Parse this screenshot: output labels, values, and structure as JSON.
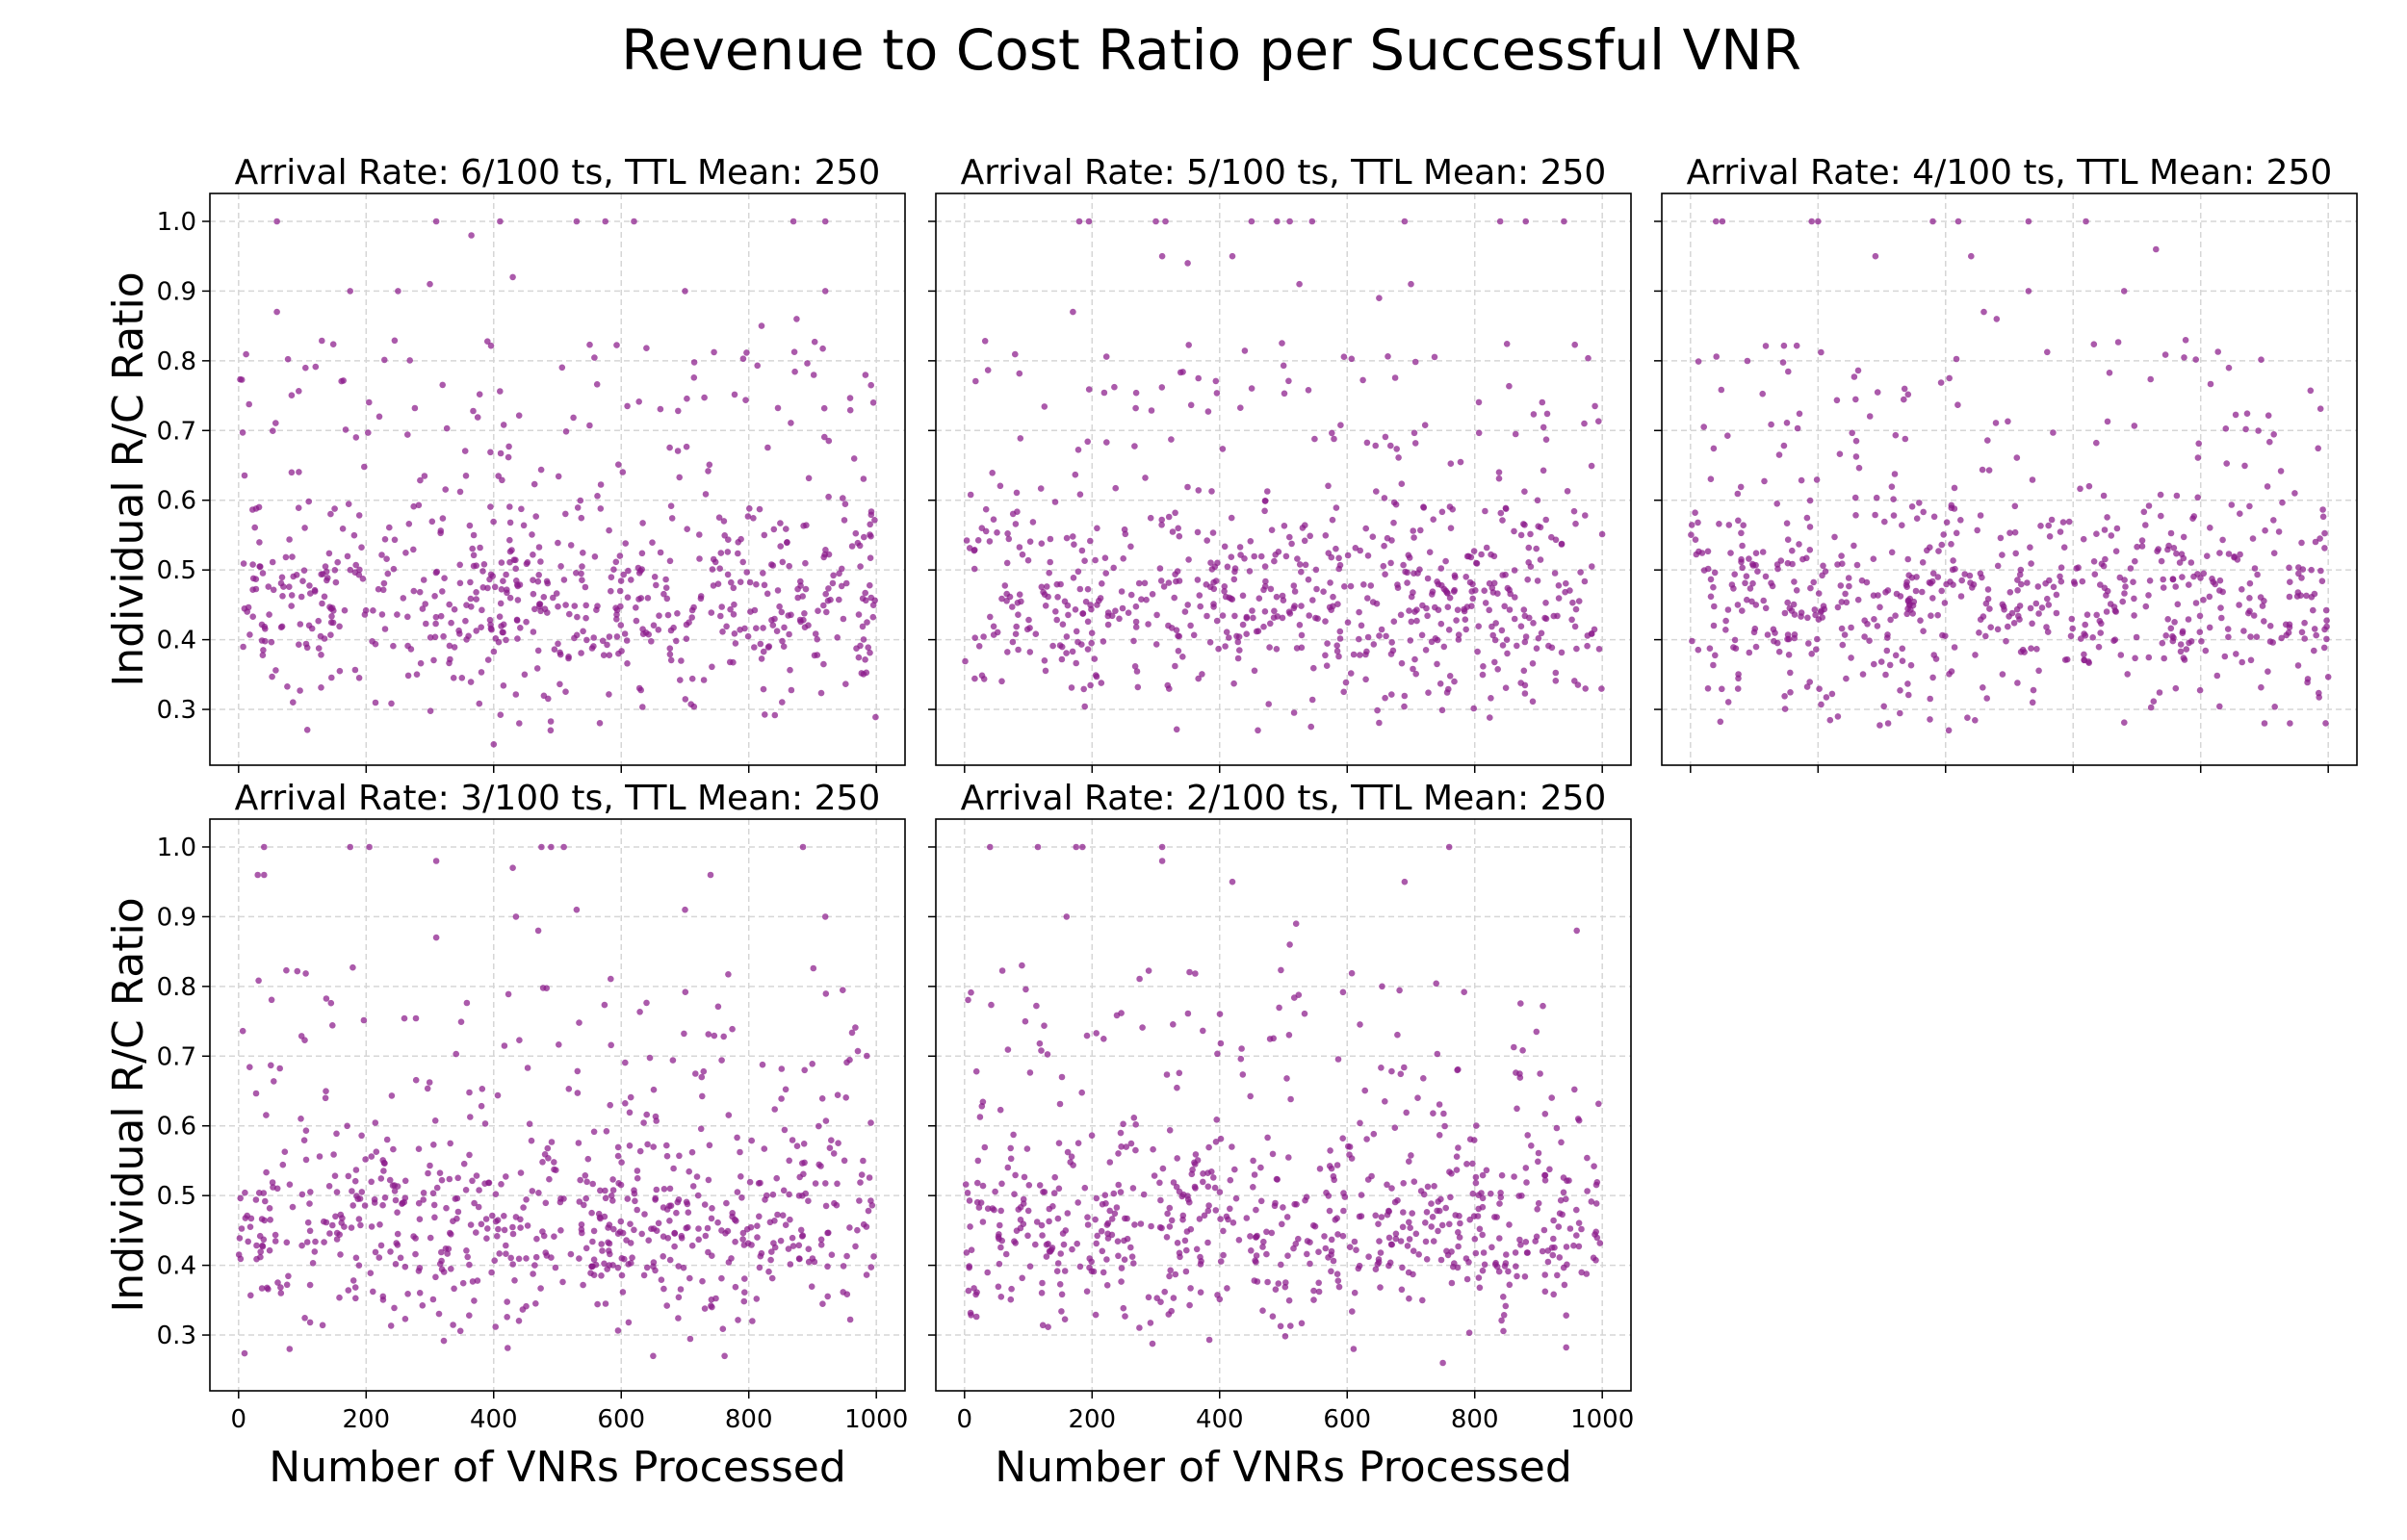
{
  "figure": {
    "title": "Revenue to Cost Ratio per Successful VNR",
    "marker_color": "#8b1a8b",
    "gridlines": true,
    "shared_y_axis": true,
    "shared_x_axis": true
  },
  "chart_data": [
    {
      "type": "scatter",
      "title": "Arrival Rate: 6/100 ts, TTL Mean: 250",
      "xlabel": "",
      "ylabel": "Individual R/C Ratio",
      "xlim": [
        -45,
        1045
      ],
      "ylim": [
        0.22,
        1.04
      ],
      "x_ticks": [
        0,
        200,
        400,
        600,
        800,
        1000
      ],
      "y_ticks": [
        0.3,
        0.4,
        0.5,
        0.6,
        0.7,
        0.8,
        0.9,
        1.0
      ],
      "n_points": 700,
      "approx_outliers": [
        {
          "x": 60,
          "y": 1.0
        },
        {
          "x": 310,
          "y": 1.0
        },
        {
          "x": 410,
          "y": 1.0
        },
        {
          "x": 530,
          "y": 1.0
        },
        {
          "x": 575,
          "y": 1.0
        },
        {
          "x": 620,
          "y": 1.0
        },
        {
          "x": 870,
          "y": 1.0
        },
        {
          "x": 920,
          "y": 1.0
        },
        {
          "x": 365,
          "y": 0.98
        },
        {
          "x": 430,
          "y": 0.92
        },
        {
          "x": 300,
          "y": 0.91
        },
        {
          "x": 700,
          "y": 0.9
        },
        {
          "x": 920,
          "y": 0.9
        },
        {
          "x": 175,
          "y": 0.9
        },
        {
          "x": 250,
          "y": 0.9
        },
        {
          "x": 60,
          "y": 0.87
        },
        {
          "x": 875,
          "y": 0.86
        },
        {
          "x": 820,
          "y": 0.85
        },
        {
          "x": 440,
          "y": 0.28
        },
        {
          "x": 400,
          "y": 0.25
        }
      ]
    },
    {
      "type": "scatter",
      "title": "Arrival Rate: 5/100 ts, TTL Mean: 250",
      "xlabel": "",
      "ylabel": "",
      "xlim": [
        -45,
        1045
      ],
      "ylim": [
        0.22,
        1.04
      ],
      "x_ticks": [
        0,
        200,
        400,
        600,
        800,
        1000
      ],
      "y_ticks": [
        0.3,
        0.4,
        0.5,
        0.6,
        0.7,
        0.8,
        0.9,
        1.0
      ],
      "n_points": 700,
      "approx_outliers": [
        {
          "x": 180,
          "y": 1.0
        },
        {
          "x": 195,
          "y": 1.0
        },
        {
          "x": 300,
          "y": 1.0
        },
        {
          "x": 315,
          "y": 1.0
        },
        {
          "x": 450,
          "y": 1.0
        },
        {
          "x": 490,
          "y": 1.0
        },
        {
          "x": 510,
          "y": 1.0
        },
        {
          "x": 545,
          "y": 1.0
        },
        {
          "x": 690,
          "y": 1.0
        },
        {
          "x": 840,
          "y": 1.0
        },
        {
          "x": 880,
          "y": 1.0
        },
        {
          "x": 940,
          "y": 1.0
        },
        {
          "x": 310,
          "y": 0.95
        },
        {
          "x": 420,
          "y": 0.95
        },
        {
          "x": 350,
          "y": 0.94
        },
        {
          "x": 525,
          "y": 0.91
        },
        {
          "x": 700,
          "y": 0.91
        },
        {
          "x": 650,
          "y": 0.89
        },
        {
          "x": 170,
          "y": 0.87
        },
        {
          "x": 460,
          "y": 0.27
        }
      ]
    },
    {
      "type": "scatter",
      "title": "Arrival Rate: 4/100 ts, TTL Mean: 250",
      "xlabel": "",
      "ylabel": "",
      "xlim": [
        -45,
        1045
      ],
      "ylim": [
        0.22,
        1.04
      ],
      "x_ticks": [
        0,
        200,
        400,
        600,
        800,
        1000
      ],
      "y_ticks": [
        0.3,
        0.4,
        0.5,
        0.6,
        0.7,
        0.8,
        0.9,
        1.0
      ],
      "n_points": 700,
      "approx_outliers": [
        {
          "x": 40,
          "y": 1.0
        },
        {
          "x": 50,
          "y": 1.0
        },
        {
          "x": 190,
          "y": 1.0
        },
        {
          "x": 200,
          "y": 1.0
        },
        {
          "x": 380,
          "y": 1.0
        },
        {
          "x": 420,
          "y": 1.0
        },
        {
          "x": 530,
          "y": 1.0
        },
        {
          "x": 620,
          "y": 1.0
        },
        {
          "x": 440,
          "y": 0.95
        },
        {
          "x": 290,
          "y": 0.95
        },
        {
          "x": 730,
          "y": 0.96
        },
        {
          "x": 680,
          "y": 0.9
        },
        {
          "x": 530,
          "y": 0.9
        },
        {
          "x": 460,
          "y": 0.87
        },
        {
          "x": 480,
          "y": 0.86
        },
        {
          "x": 310,
          "y": 0.28
        },
        {
          "x": 940,
          "y": 0.28
        },
        {
          "x": 900,
          "y": 0.28
        }
      ]
    },
    {
      "type": "scatter",
      "title": "Arrival Rate: 3/100 ts, TTL Mean: 250",
      "xlabel": "Number of VNRs Processed",
      "ylabel": "Individual R/C Ratio",
      "xlim": [
        -45,
        1045
      ],
      "ylim": [
        0.22,
        1.04
      ],
      "x_ticks": [
        0,
        200,
        400,
        600,
        800,
        1000
      ],
      "y_ticks": [
        0.3,
        0.4,
        0.5,
        0.6,
        0.7,
        0.8,
        0.9,
        1.0
      ],
      "n_points": 700,
      "approx_outliers": [
        {
          "x": 40,
          "y": 1.0
        },
        {
          "x": 175,
          "y": 1.0
        },
        {
          "x": 205,
          "y": 1.0
        },
        {
          "x": 475,
          "y": 1.0
        },
        {
          "x": 490,
          "y": 1.0
        },
        {
          "x": 510,
          "y": 1.0
        },
        {
          "x": 885,
          "y": 1.0
        },
        {
          "x": 310,
          "y": 0.98
        },
        {
          "x": 430,
          "y": 0.97
        },
        {
          "x": 30,
          "y": 0.96
        },
        {
          "x": 40,
          "y": 0.96
        },
        {
          "x": 740,
          "y": 0.96
        },
        {
          "x": 700,
          "y": 0.91
        },
        {
          "x": 530,
          "y": 0.91
        },
        {
          "x": 435,
          "y": 0.9
        },
        {
          "x": 920,
          "y": 0.9
        },
        {
          "x": 470,
          "y": 0.88
        },
        {
          "x": 310,
          "y": 0.87
        },
        {
          "x": 650,
          "y": 0.27
        },
        {
          "x": 80,
          "y": 0.28
        }
      ]
    },
    {
      "type": "scatter",
      "title": "Arrival Rate: 2/100 ts, TTL Mean: 250",
      "xlabel": "Number of VNRs Processed",
      "ylabel": "",
      "xlim": [
        -45,
        1045
      ],
      "ylim": [
        0.22,
        1.04
      ],
      "x_ticks": [
        0,
        200,
        400,
        600,
        800,
        1000
      ],
      "y_ticks": [
        0.3,
        0.4,
        0.5,
        0.6,
        0.7,
        0.8,
        0.9,
        1.0
      ],
      "n_points": 700,
      "approx_outliers": [
        {
          "x": 40,
          "y": 1.0
        },
        {
          "x": 115,
          "y": 1.0
        },
        {
          "x": 175,
          "y": 1.0
        },
        {
          "x": 185,
          "y": 1.0
        },
        {
          "x": 310,
          "y": 1.0
        },
        {
          "x": 760,
          "y": 1.0
        },
        {
          "x": 310,
          "y": 0.98
        },
        {
          "x": 420,
          "y": 0.95
        },
        {
          "x": 690,
          "y": 0.95
        },
        {
          "x": 160,
          "y": 0.9
        },
        {
          "x": 520,
          "y": 0.89
        },
        {
          "x": 960,
          "y": 0.88
        },
        {
          "x": 510,
          "y": 0.86
        },
        {
          "x": 90,
          "y": 0.83
        },
        {
          "x": 750,
          "y": 0.26
        },
        {
          "x": 610,
          "y": 0.28
        }
      ]
    }
  ]
}
